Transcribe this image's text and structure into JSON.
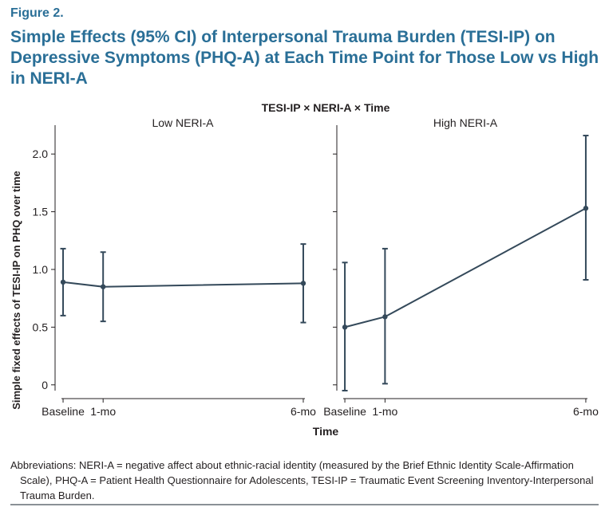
{
  "figure": {
    "label": "Figure 2.",
    "title": "Simple Effects (95% CI) of Interpersonal Trauma Burden (TESI-IP) on Depressive Symptoms (PHQ-A) at Each Time Point for Those Low vs High in NERI-A"
  },
  "footnote": {
    "line1": "Abbreviations: NERI-A = negative affect about ethnic-racial identity (measured by the Brief Ethnic Identity Scale-Affirmation",
    "line2": "Scale), PHQ-A = Patient Health Questionnaire for Adolescents, TESI-IP = Traumatic Event Screening Inventory-Interpersonal",
    "line3": "Trauma Burden."
  },
  "colors": {
    "series": "#34495a",
    "title": "#2a6f97",
    "axis": "#231f20",
    "rule": "#8a9196"
  },
  "chart_data": {
    "type": "line",
    "title": "TESI-IP × NERI-A × Time",
    "xlabel": "Time",
    "ylabel": "Simple fixed effects of TESI-IP on PHQ over time",
    "ylim": [
      -0.05,
      2.25
    ],
    "yticks": [
      0,
      0.5,
      1.0,
      1.5,
      2.0
    ],
    "ytick_labels": [
      "0",
      "0.5",
      "1.0",
      "1.5",
      "2.0"
    ],
    "xlim": [
      -0.2,
      6.2
    ],
    "x_ticks": [
      0,
      1,
      6
    ],
    "x_tick_labels": [
      "Baseline",
      "1-mo",
      "6-mo"
    ],
    "grid": false,
    "panels": [
      {
        "name": "Low NERI-A",
        "points": [
          {
            "x": 0,
            "y": 0.89,
            "lo": 0.6,
            "hi": 1.18
          },
          {
            "x": 1,
            "y": 0.85,
            "lo": 0.55,
            "hi": 1.15
          },
          {
            "x": 6,
            "y": 0.88,
            "lo": 0.54,
            "hi": 1.22
          }
        ]
      },
      {
        "name": "High NERI-A",
        "points": [
          {
            "x": 0,
            "y": 0.5,
            "lo": -0.05,
            "hi": 1.06
          },
          {
            "x": 1,
            "y": 0.59,
            "lo": 0.01,
            "hi": 1.18
          },
          {
            "x": 6,
            "y": 1.53,
            "lo": 0.91,
            "hi": 2.16
          }
        ]
      }
    ]
  }
}
